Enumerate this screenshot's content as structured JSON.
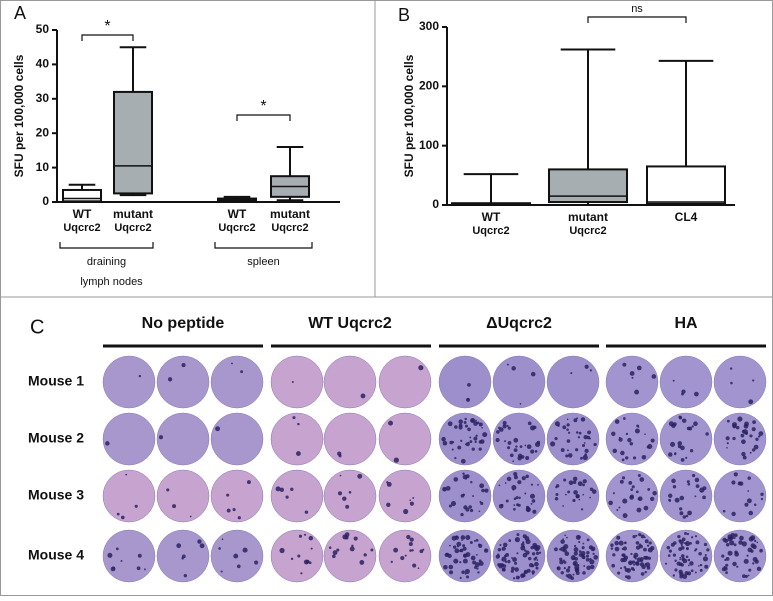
{
  "chart_data": [
    {
      "type": "box",
      "panel": "A",
      "ylabel": "SFU per 100,000 cells",
      "categories": [
        [
          "WT",
          "Uqcrc2"
        ],
        [
          "mutant",
          "Uqcrc2"
        ],
        [
          "WT",
          "Uqcrc2"
        ],
        [
          "mutant",
          "Uqcrc2"
        ]
      ],
      "boxes": [
        {
          "min": 0,
          "q1": 0.2,
          "median": 1,
          "q3": 3.5,
          "max": 5
        },
        {
          "min": 2,
          "q1": 2.5,
          "median": 10.5,
          "q3": 32,
          "max": 45
        },
        {
          "min": 0,
          "q1": 0.3,
          "median": 0.7,
          "q3": 1,
          "max": 1.5
        },
        {
          "min": 0.5,
          "q1": 1.5,
          "median": 4.5,
          "q3": 7.5,
          "max": 16
        }
      ],
      "colors": [
        "#ffffff",
        "#a7aeb1",
        "#ffffff",
        "#a7aeb1"
      ],
      "groups": [
        [
          "draining",
          "lymph nodes"
        ],
        [
          "spleen"
        ]
      ],
      "annotations": [
        "*",
        "*"
      ],
      "ylim": [
        0,
        50
      ],
      "yticks": [
        0,
        10,
        20,
        30,
        40,
        50
      ]
    },
    {
      "type": "box",
      "panel": "B",
      "ylabel": "SFU per 100,000 cells",
      "categories": [
        [
          "WT",
          "Uqcrc2"
        ],
        [
          "mutant",
          "Uqcrc2"
        ],
        [
          "CL4"
        ]
      ],
      "boxes": [
        {
          "min": 0,
          "q1": 0,
          "median": 1,
          "q3": 3,
          "max": 52
        },
        {
          "min": 0,
          "q1": 5,
          "median": 15,
          "q3": 60,
          "max": 262
        },
        {
          "min": 0,
          "q1": 2,
          "median": 5,
          "q3": 65,
          "max": 243
        }
      ],
      "colors": [
        "#ffffff",
        "#a7aeb1",
        "#ffffff"
      ],
      "annotations": [
        "ns"
      ],
      "ylim": [
        0,
        300
      ],
      "yticks": [
        0,
        100,
        200,
        300
      ]
    }
  ],
  "panel_c": {
    "label": "C",
    "columns": [
      "No peptide",
      "WT Uqcrc2",
      "ΔUqcrc2",
      "HA"
    ],
    "rows": [
      "Mouse 1",
      "Mouse 2",
      "Mouse 3",
      "Mouse 4"
    ]
  }
}
